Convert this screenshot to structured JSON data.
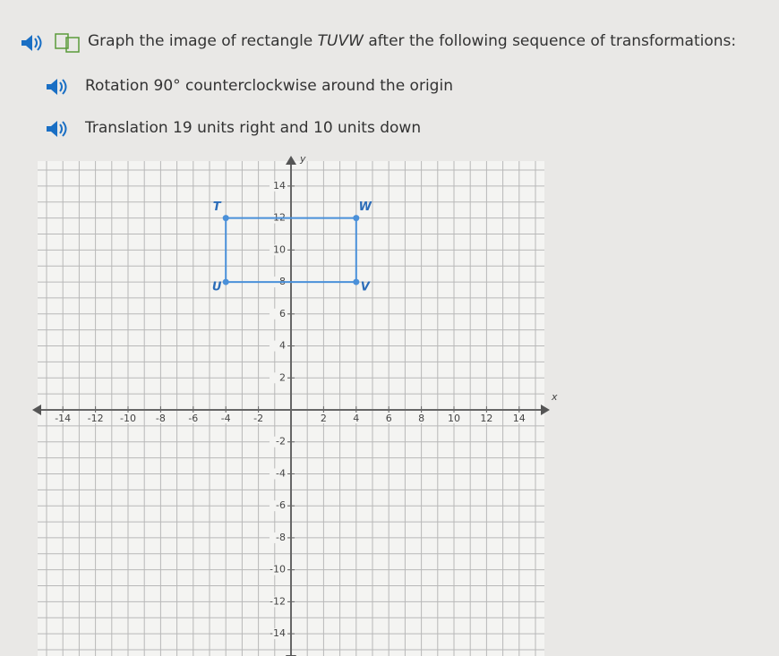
{
  "header": {
    "instruction": [
      "Graph the image of rectangle ",
      "TUVW",
      " after the following sequence of transformations:"
    ]
  },
  "steps": [
    "Rotation 90° counterclockwise around the origin",
    "Translation 19 units right and 10 units down"
  ],
  "graph": {
    "x_label": "x",
    "y_label": "y",
    "xlim": [
      -15,
      15
    ],
    "ylim": [
      -15,
      15
    ],
    "xticks": [
      -14,
      -12,
      -10,
      -8,
      -6,
      -4,
      -2,
      2,
      4,
      6,
      8,
      10,
      12,
      14
    ],
    "yticks": [
      -14,
      -12,
      -10,
      -8,
      -6,
      -4,
      -2,
      2,
      4,
      6,
      8,
      10,
      12,
      14
    ],
    "color": "#4a90d9",
    "vertices": [
      {
        "label": "T",
        "x": -4,
        "y": 12
      },
      {
        "label": "U",
        "x": -4,
        "y": 8
      },
      {
        "label": "V",
        "x": 4,
        "y": 8
      },
      {
        "label": "W",
        "x": 4,
        "y": 12
      }
    ]
  }
}
